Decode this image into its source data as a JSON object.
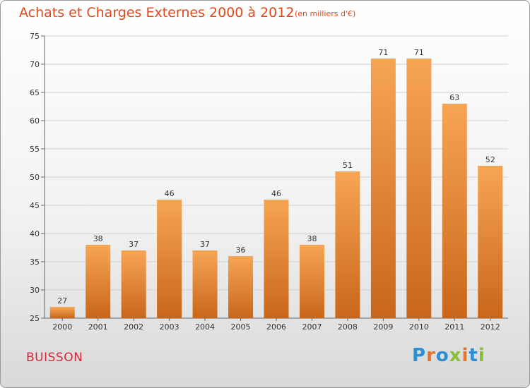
{
  "header": {
    "title": "Achats et Charges Externes 2000 à 2012",
    "subtitle": "(en milliers d'€)"
  },
  "footer": {
    "town": "BUISSON",
    "logo_text": "Proxiti"
  },
  "colors": {
    "bar_top": "#f7a555",
    "bar_bottom": "#c9661a",
    "title": "#e0491a",
    "town": "#d9263b",
    "grid": "#d0d0d0"
  },
  "chart_data": {
    "type": "bar",
    "title": "Achats et Charges Externes 2000 à 2012",
    "subtitle": "(en milliers d'€)",
    "xlabel": "",
    "ylabel": "",
    "categories": [
      "2000",
      "2001",
      "2002",
      "2003",
      "2004",
      "2005",
      "2006",
      "2007",
      "2008",
      "2009",
      "2010",
      "2011",
      "2012"
    ],
    "values": [
      27,
      38,
      37,
      46,
      37,
      36,
      46,
      38,
      51,
      71,
      71,
      63,
      52
    ],
    "ylim": [
      25,
      75
    ],
    "yticks": [
      25,
      30,
      35,
      40,
      45,
      50,
      55,
      60,
      65,
      70,
      75
    ],
    "grid": true,
    "data_labels": true
  }
}
